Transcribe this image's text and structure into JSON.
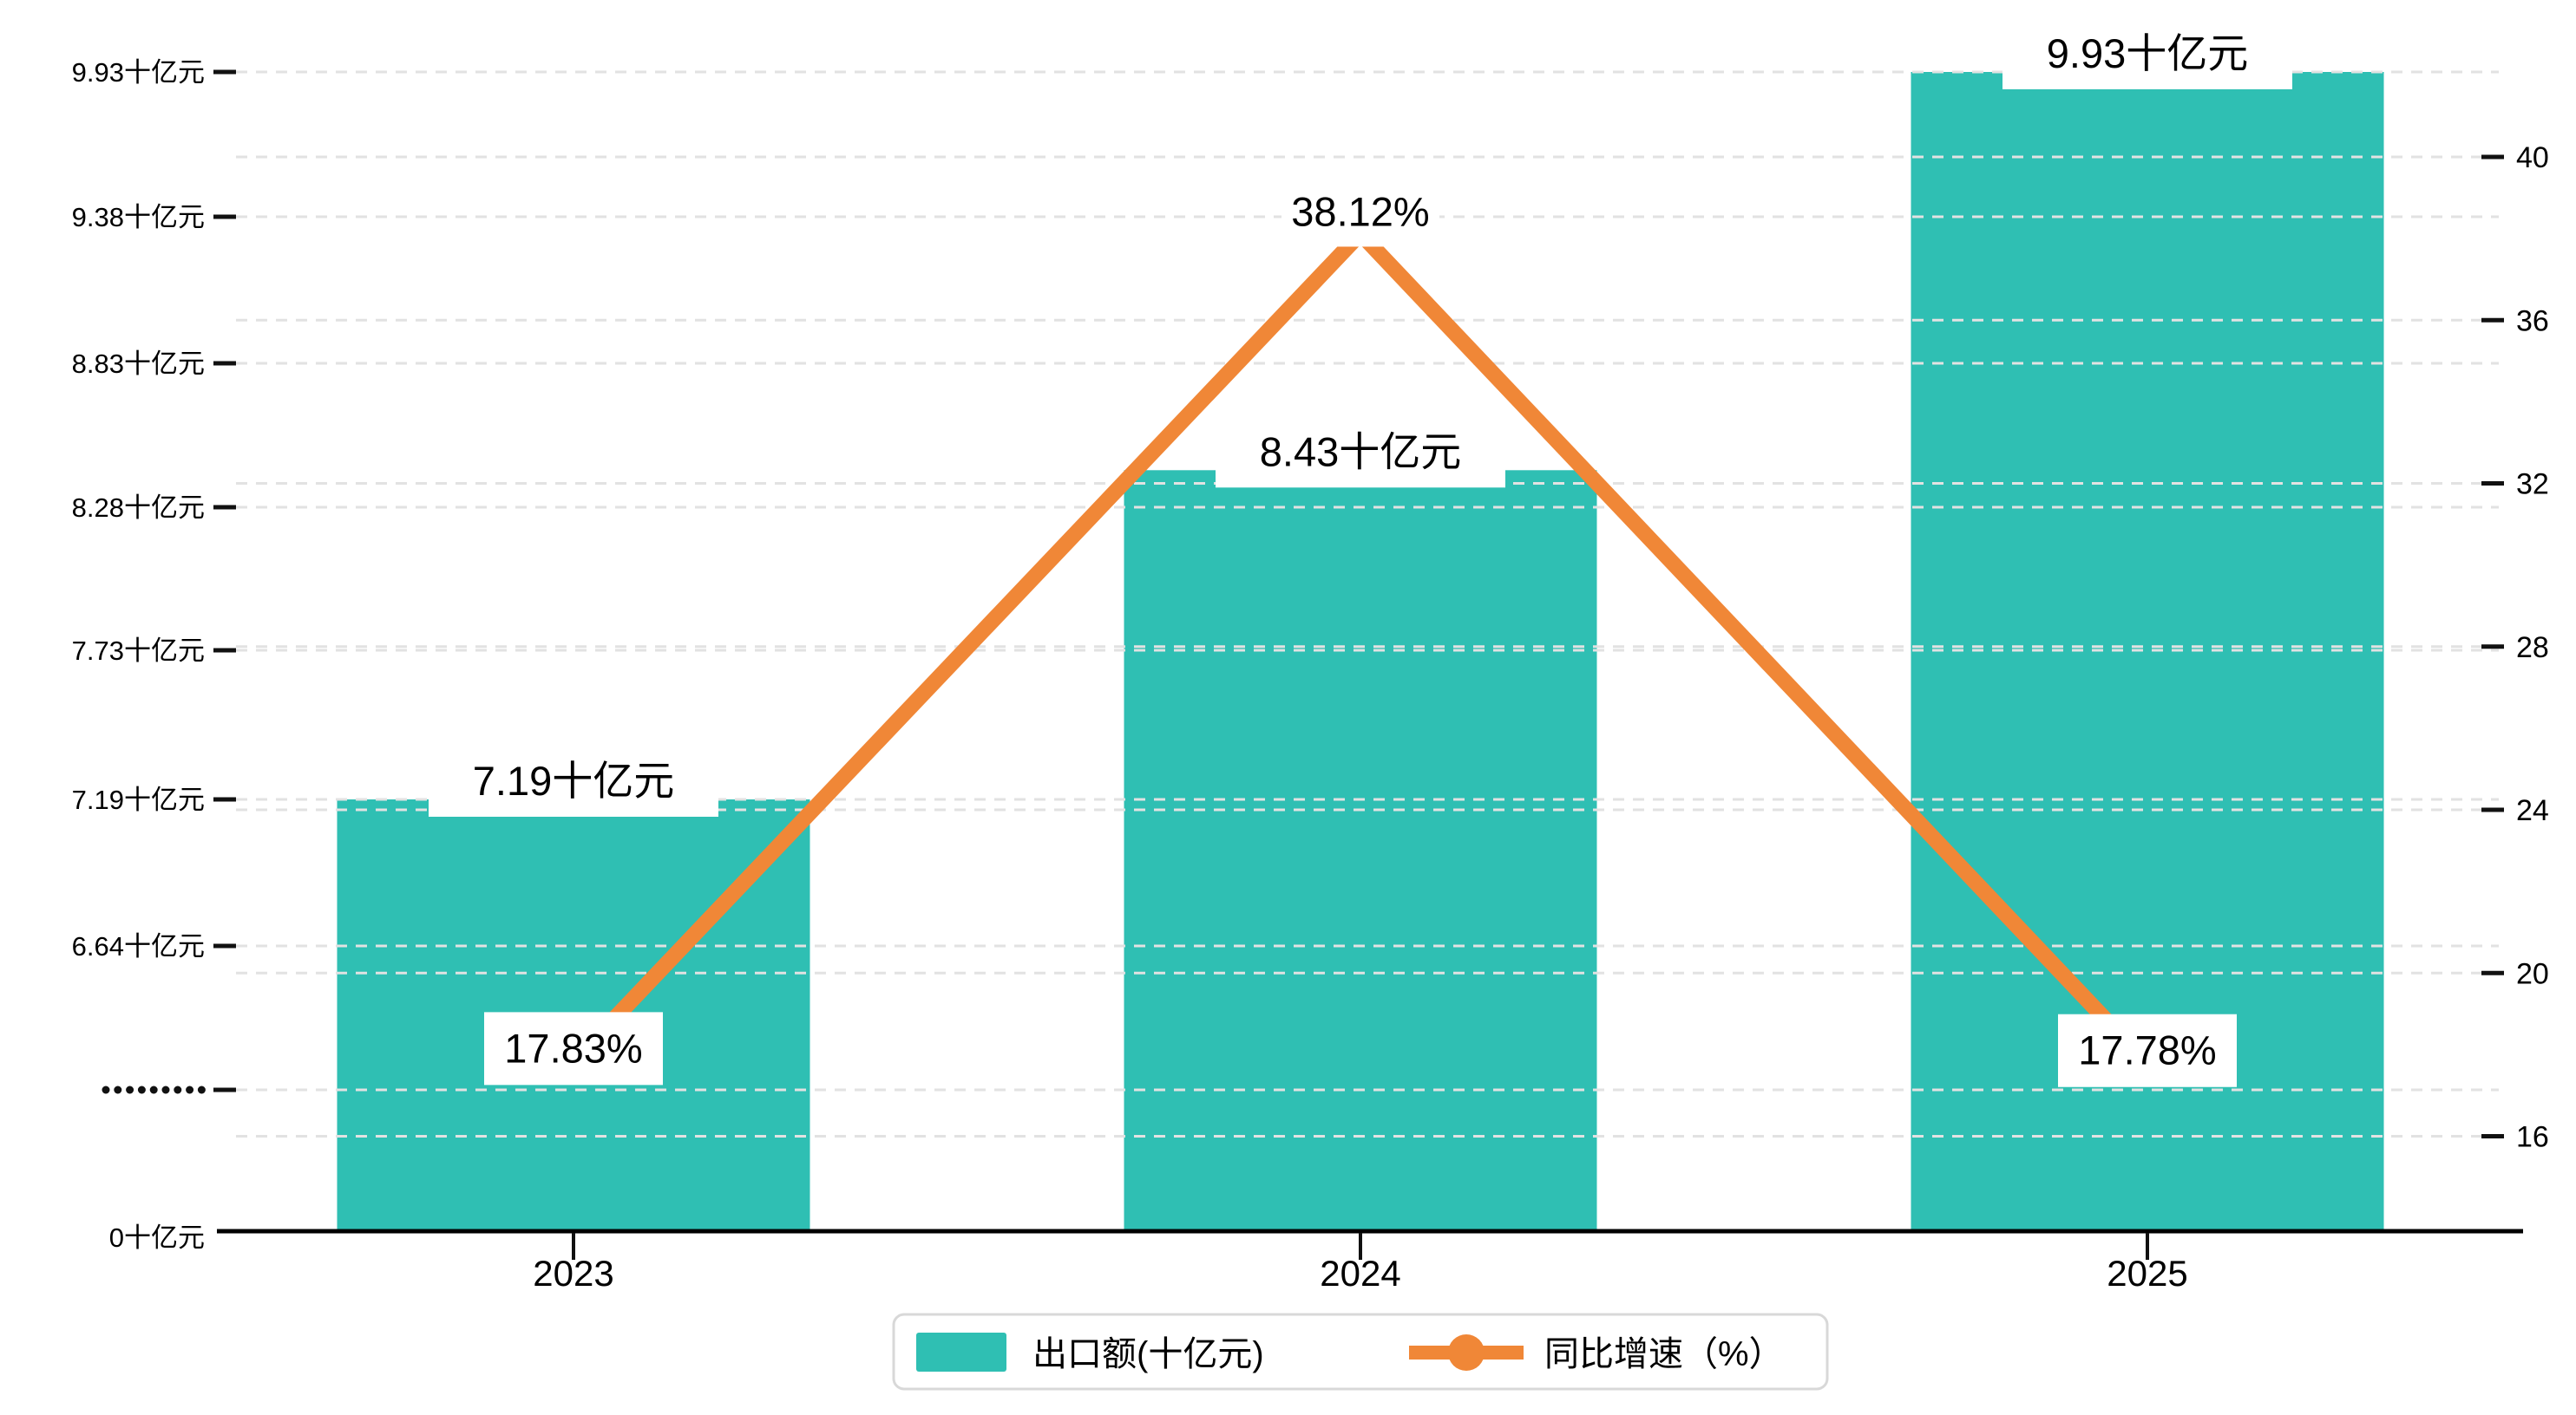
{
  "chart_data": {
    "type": "bar",
    "subtype": "bar-line-combo-dual-axis",
    "title": "",
    "categories": [
      "2023",
      "2024",
      "2025"
    ],
    "series": [
      {
        "name": "出口额(十亿元)",
        "type": "bar",
        "axis": "left",
        "color": "#2fbfb3",
        "values": [
          7.19,
          8.43,
          9.93
        ],
        "point_labels": [
          "7.19十亿元",
          "8.43十亿元",
          "9.93十亿元"
        ]
      },
      {
        "name": "同比增速（%）",
        "type": "line",
        "axis": "right",
        "color": "#f08737",
        "values": [
          17.83,
          38.12,
          17.78
        ],
        "point_labels": [
          "17.83%",
          "38.12%",
          "17.78%"
        ]
      }
    ],
    "left_axis": {
      "unit": "十亿元",
      "tick_labels": [
        "9.93十亿元",
        "9.38十亿元",
        "8.83十亿元",
        "8.28十亿元",
        "7.73十亿元",
        "7.19十亿元",
        "6.64十亿元",
        ".........",
        "0十亿元"
      ],
      "tick_values": [
        9.93,
        9.38,
        8.83,
        8.28,
        7.73,
        7.19,
        6.64,
        null,
        0
      ],
      "axis_break": true,
      "break_label": "........."
    },
    "right_axis": {
      "unit": "%",
      "tick_labels": [
        "40",
        "36",
        "32",
        "28",
        "24",
        "20",
        "16"
      ],
      "tick_values": [
        40,
        36,
        32,
        28,
        24,
        20,
        16
      ],
      "range": [
        14,
        42
      ]
    },
    "legend": {
      "position": "bottom",
      "items": [
        {
          "label": "出口额(十亿元)",
          "symbol": "bar-swatch",
          "color": "#2fbfb3"
        },
        {
          "label": "同比增速（%）",
          "symbol": "line-with-dot",
          "color": "#f08737"
        }
      ]
    },
    "grid": true,
    "gridline_style": "dashed",
    "background": "#ffffff"
  },
  "colors": {
    "bar": "#2fbfb3",
    "line": "#f08737",
    "gridline": "#e2e2e2",
    "axis_line": "#000000",
    "label_text": "#000000",
    "label_bg": "#ffffff",
    "legend_border": "#d8d8d8"
  }
}
